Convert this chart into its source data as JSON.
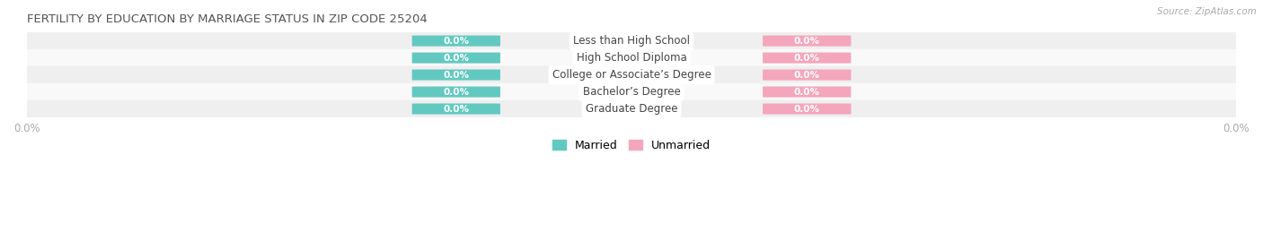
{
  "title": "FERTILITY BY EDUCATION BY MARRIAGE STATUS IN ZIP CODE 25204",
  "source": "Source: ZipAtlas.com",
  "categories": [
    "Less than High School",
    "High School Diploma",
    "College or Associate’s Degree",
    "Bachelor’s Degree",
    "Graduate Degree"
  ],
  "married_values": [
    0.0,
    0.0,
    0.0,
    0.0,
    0.0
  ],
  "unmarried_values": [
    0.0,
    0.0,
    0.0,
    0.0,
    0.0
  ],
  "married_color": "#62C9C1",
  "unmarried_color": "#F4A6BC",
  "row_bg_colors": [
    "#EFEFEF",
    "#F9F9F9"
  ],
  "title_color": "#555555",
  "category_text_color": "#444444",
  "axis_label_color": "#aaaaaa",
  "figsize": [
    14.06,
    2.69
  ],
  "dpi": 100,
  "legend_married": "Married",
  "legend_unmarried": "Unmarried"
}
